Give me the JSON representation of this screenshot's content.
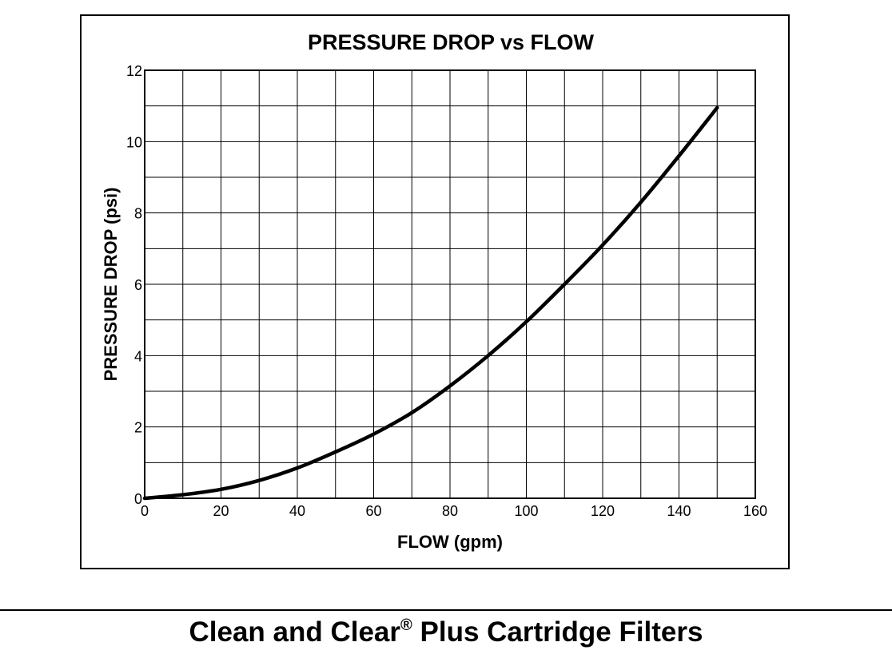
{
  "chart_data": {
    "type": "line",
    "title": "PRESSURE DROP vs FLOW",
    "xlabel": "FLOW (gpm)",
    "ylabel": "PRESSURE DROP (psi)",
    "xlim": [
      0,
      160
    ],
    "ylim": [
      0,
      12
    ],
    "x_ticks": [
      0,
      20,
      40,
      60,
      80,
      100,
      120,
      140,
      160
    ],
    "y_ticks": [
      0,
      2,
      4,
      6,
      8,
      10,
      12
    ],
    "grid": true,
    "legend": "none",
    "series": [
      {
        "x": [
          0,
          10,
          20,
          30,
          40,
          50,
          60,
          70,
          80,
          90,
          100,
          110,
          120,
          130,
          140,
          150
        ],
        "y": [
          0,
          0.1,
          0.25,
          0.5,
          0.85,
          1.3,
          1.8,
          2.4,
          3.15,
          4.0,
          4.95,
          6.0,
          7.1,
          8.3,
          9.6,
          10.95
        ],
        "color": "#000000"
      }
    ]
  },
  "footer": {
    "title_main": "Clean and Clear",
    "title_mark": "®",
    "title_rest": " Plus Cartridge Filters"
  }
}
